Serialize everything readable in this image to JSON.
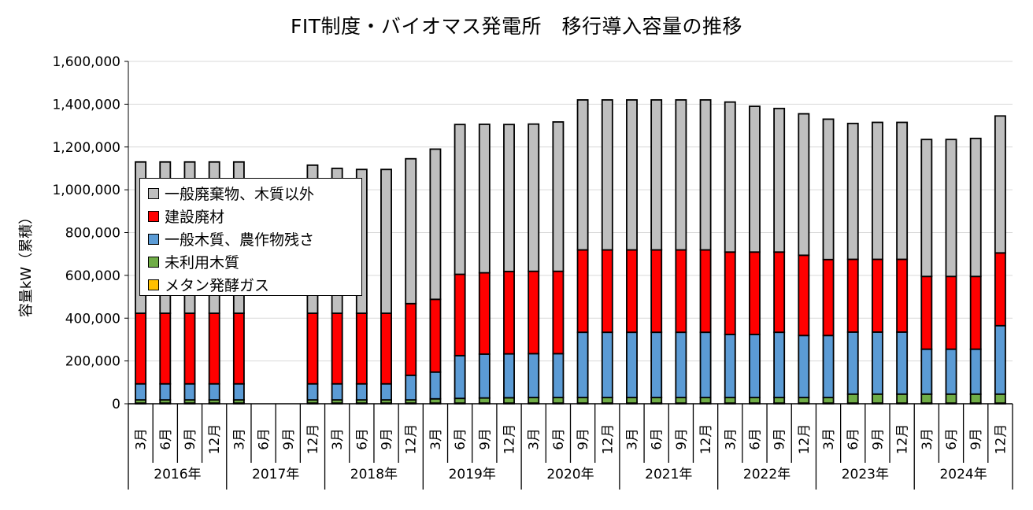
{
  "chart_data": {
    "type": "bar",
    "stacked": true,
    "title": "FIT制度・バイオマス発電所　移行導入容量の推移",
    "ylabel": "容量kW（累積）",
    "xlabel": "",
    "ylim": [
      0,
      1600000
    ],
    "yticks": [
      "0",
      "200,000",
      "400,000",
      "600,000",
      "800,000",
      "1,000,000",
      "1,200,000",
      "1,400,000",
      "1,600,000"
    ],
    "grid": true,
    "legend_position": "upper-left inside plot",
    "categories": [
      "3月",
      "6月",
      "9月",
      "12月",
      "3月",
      "6月",
      "9月",
      "12月",
      "3月",
      "6月",
      "9月",
      "12月",
      "3月",
      "6月",
      "9月",
      "12月",
      "3月",
      "6月",
      "9月",
      "12月",
      "3月",
      "6月",
      "9月",
      "12月",
      "3月",
      "6月",
      "9月",
      "12月",
      "3月",
      "6月",
      "9月",
      "12月",
      "3月",
      "6月",
      "9月",
      "12月"
    ],
    "years": [
      "2016年",
      "2017年",
      "2018年",
      "2019年",
      "2020年",
      "2021年",
      "2022年",
      "2023年",
      "2024年"
    ],
    "series": [
      {
        "name": "メタン発酵ガス",
        "color": "#ffc000",
        "values": [
          3000,
          3000,
          3000,
          3000,
          3000,
          0,
          0,
          3000,
          3000,
          3000,
          3000,
          3000,
          3000,
          3000,
          3000,
          3000,
          3000,
          3000,
          3000,
          3000,
          3000,
          3000,
          3000,
          3000,
          3000,
          3000,
          3000,
          3000,
          3000,
          3000,
          3000,
          3000,
          3000,
          3000,
          3000,
          3000
        ]
      },
      {
        "name": "未利用木質",
        "color": "#70ad47",
        "values": [
          15000,
          15000,
          15000,
          15000,
          15000,
          0,
          0,
          15000,
          15000,
          15000,
          15000,
          15000,
          20000,
          22000,
          24000,
          25000,
          26000,
          26000,
          26000,
          26000,
          26000,
          26000,
          26000,
          26000,
          26000,
          26000,
          26000,
          26000,
          26000,
          42000,
          42000,
          42000,
          42000,
          42000,
          42000,
          42000
        ]
      },
      {
        "name": "一般木質、農作物残さ",
        "color": "#5b9bd5",
        "values": [
          75000,
          75000,
          75000,
          75000,
          75000,
          0,
          0,
          75000,
          75000,
          75000,
          75000,
          115000,
          125000,
          200000,
          205000,
          205000,
          205000,
          205000,
          305000,
          305000,
          305000,
          305000,
          305000,
          305000,
          295000,
          295000,
          305000,
          290000,
          290000,
          290000,
          290000,
          290000,
          210000,
          210000,
          210000,
          320000
        ]
      },
      {
        "name": "建設廃材",
        "color": "#ff0000",
        "values": [
          330000,
          330000,
          330000,
          330000,
          330000,
          0,
          0,
          330000,
          330000,
          330000,
          330000,
          335000,
          340000,
          380000,
          380000,
          385000,
          385000,
          385000,
          385000,
          385000,
          385000,
          385000,
          385000,
          385000,
          385000,
          385000,
          375000,
          375000,
          355000,
          340000,
          340000,
          340000,
          340000,
          340000,
          340000,
          340000
        ]
      },
      {
        "name": "一般廃棄物、木質以外",
        "color": "#bfbfbf",
        "values": [
          707000,
          707000,
          707000,
          707000,
          707000,
          0,
          0,
          692000,
          677000,
          672000,
          672000,
          677000,
          702000,
          700000,
          694000,
          687000,
          688000,
          698000,
          701000,
          701000,
          701000,
          701000,
          701000,
          701000,
          701000,
          681000,
          671000,
          661000,
          656000,
          635000,
          640000,
          640000,
          640000,
          640000,
          645000,
          640000
        ]
      }
    ]
  }
}
